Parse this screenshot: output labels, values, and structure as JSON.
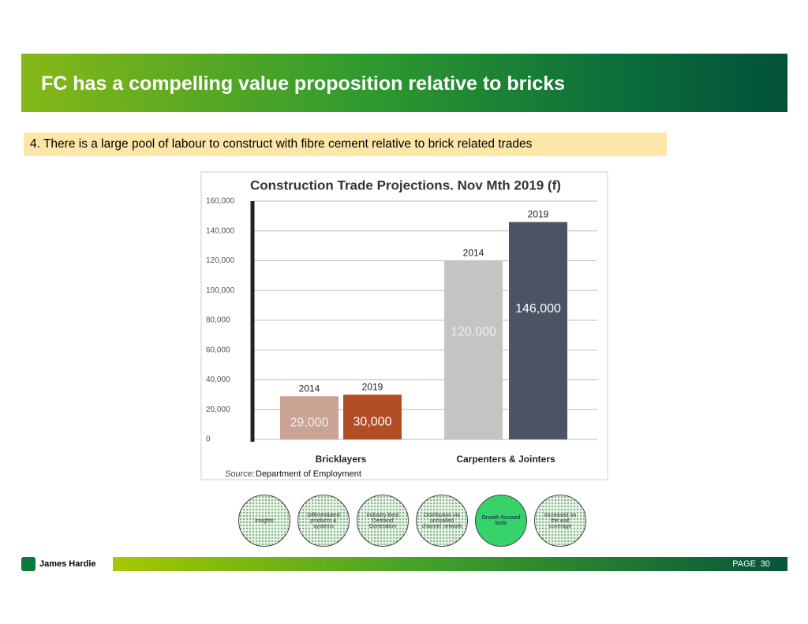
{
  "header": {
    "title": "FC has a compelling value proposition relative to bricks",
    "subtitle": "4. There is a large pool of labour to construct with fibre cement relative to brick related trades"
  },
  "chart_data": {
    "type": "bar",
    "title": "Construction Trade Projections. Nov Mth 2019 (f)",
    "categories": [
      "Bricklayers",
      "Carpenters & Jointers"
    ],
    "series": [
      {
        "name": "2014",
        "colors": [
          "#caa394",
          "#c4c4c4"
        ],
        "values": [
          29000,
          120000
        ],
        "value_labels": [
          "29,000",
          "120,000"
        ]
      },
      {
        "name": "2019",
        "colors": [
          "#b24e26",
          "#4b5464"
        ],
        "values": [
          30000,
          146000
        ],
        "value_labels": [
          "30,000",
          "146,000"
        ]
      }
    ],
    "ylim": [
      0,
      160000
    ],
    "yticks": [
      0,
      {
        "value": 20000,
        "label": "20,000"
      },
      {
        "value": 40000,
        "label": "40,000"
      },
      {
        "value": 60000,
        "label": "60,000"
      },
      {
        "value": 80000,
        "label": "80,000"
      },
      {
        "value": 100000,
        "label": "100,000"
      },
      {
        "value": 120000,
        "label": "120,000"
      },
      {
        "value": 140000,
        "label": "140,000"
      },
      {
        "value": 160000,
        "label": "160,000"
      }
    ],
    "grid": true,
    "source_label": "Source:",
    "source": "Department of Employment"
  },
  "steps": [
    "Insights",
    "Differentiated products & systems",
    "Industry Best Demand Generation",
    "Distribution via unrivalled channel network",
    "Growth focused tools",
    "Increased on the wall coverage"
  ],
  "footer": {
    "brand": "James Hardie",
    "page_label": "PAGE",
    "page_number": "30"
  }
}
